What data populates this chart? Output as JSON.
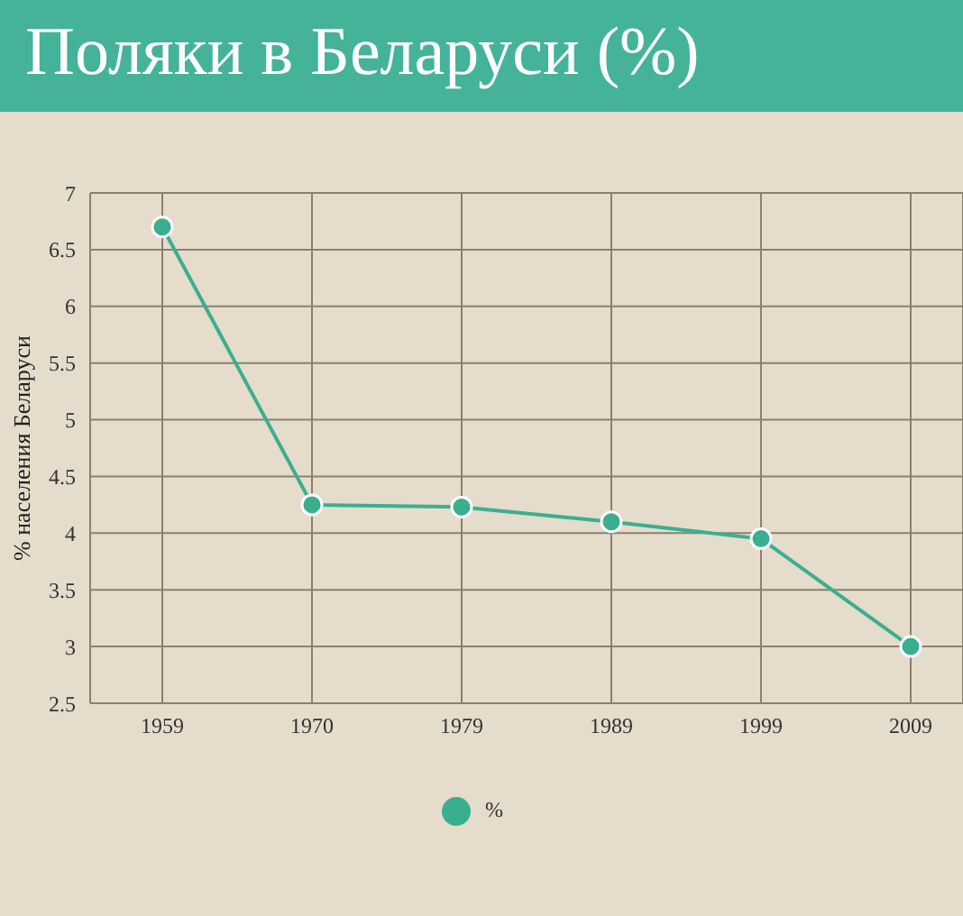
{
  "chart_data": {
    "type": "line",
    "title": "Поляки в Беларуси (%)",
    "ylabel": "% населения Беларуси",
    "categories": [
      "1959",
      "1970",
      "1979",
      "1989",
      "1999",
      "2009"
    ],
    "series": [
      {
        "name": "%",
        "color": "#3aaf8f",
        "values": [
          6.7,
          4.25,
          4.23,
          4.1,
          3.95,
          3.0
        ]
      }
    ],
    "ylim": [
      2.5,
      7
    ],
    "yticks": [
      2.5,
      3,
      3.5,
      4,
      4.5,
      5,
      5.5,
      6,
      6.5,
      7
    ],
    "grid": true,
    "legend": "bottom",
    "marker": "circle",
    "line_style": "solid"
  }
}
